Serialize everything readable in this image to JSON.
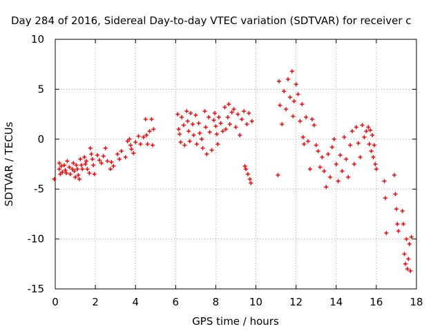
{
  "chart_data": {
    "type": "scatter",
    "title": "Day 284 of 2016, Sidereal Day-to-day VTEC variation (SDTVAR) for receiver c",
    "xlabel": "GPS time / hours",
    "ylabel": "SDTVAR / TECUs",
    "xlim": [
      0,
      18
    ],
    "ylim": [
      -15,
      10
    ],
    "xticks": [
      0,
      2,
      4,
      6,
      8,
      10,
      12,
      14,
      16,
      18
    ],
    "yticks": [
      -15,
      -10,
      -5,
      0,
      5,
      10
    ],
    "xtick_labels": [
      "0",
      "2",
      "4",
      "6",
      "8",
      "10",
      "12",
      "14",
      "16",
      "18"
    ],
    "ytick_labels": [
      "-15",
      "-10",
      "-5",
      "0",
      "5",
      "10"
    ],
    "grid": true,
    "marker": "+",
    "color": "#ff0000",
    "series": [
      {
        "name": "SDTVAR",
        "points": [
          [
            -0.05,
            -4.0
          ],
          [
            0.2,
            -2.4
          ],
          [
            0.2,
            -3.0
          ],
          [
            0.25,
            -3.5
          ],
          [
            0.3,
            -2.7
          ],
          [
            0.35,
            -3.3
          ],
          [
            0.45,
            -2.6
          ],
          [
            0.5,
            -3.1
          ],
          [
            0.55,
            -3.4
          ],
          [
            0.6,
            -2.2
          ],
          [
            0.7,
            -2.8
          ],
          [
            0.75,
            -3.5
          ],
          [
            0.85,
            -3.0
          ],
          [
            0.9,
            -2.4
          ],
          [
            0.95,
            -3.2
          ],
          [
            1.0,
            -3.8
          ],
          [
            1.05,
            -2.6
          ],
          [
            1.1,
            -3.0
          ],
          [
            1.15,
            -3.6
          ],
          [
            1.2,
            -4.0
          ],
          [
            1.25,
            -2.0
          ],
          [
            1.3,
            -2.6
          ],
          [
            1.35,
            -3.0
          ],
          [
            1.45,
            -1.8
          ],
          [
            1.5,
            -2.5
          ],
          [
            1.55,
            -2.2
          ],
          [
            1.6,
            -3.0
          ],
          [
            1.7,
            -3.4
          ],
          [
            1.75,
            -0.9
          ],
          [
            1.8,
            -1.5
          ],
          [
            1.85,
            -2.0
          ],
          [
            1.9,
            -2.6
          ],
          [
            1.95,
            -3.5
          ],
          [
            2.1,
            -1.6
          ],
          [
            2.2,
            -2.1
          ],
          [
            2.3,
            -2.4
          ],
          [
            2.4,
            -1.7
          ],
          [
            2.5,
            -0.9
          ],
          [
            2.6,
            -2.2
          ],
          [
            2.75,
            -3.0
          ],
          [
            2.8,
            -2.3
          ],
          [
            2.9,
            -2.7
          ],
          [
            3.1,
            -1.5
          ],
          [
            3.2,
            -2.0
          ],
          [
            3.3,
            -1.2
          ],
          [
            3.5,
            -1.8
          ],
          [
            3.6,
            -0.2
          ],
          [
            3.7,
            0.0
          ],
          [
            3.75,
            -0.6
          ],
          [
            3.8,
            -1.0
          ],
          [
            3.9,
            -1.4
          ],
          [
            4.0,
            -0.3
          ],
          [
            4.15,
            0.3
          ],
          [
            4.25,
            -0.5
          ],
          [
            4.4,
            0.2
          ],
          [
            4.5,
            2.0
          ],
          [
            4.55,
            0.4
          ],
          [
            4.6,
            -0.5
          ],
          [
            4.7,
            0.8
          ],
          [
            4.8,
            2.0
          ],
          [
            4.85,
            -0.6
          ],
          [
            4.9,
            1.0
          ],
          [
            6.1,
            2.5
          ],
          [
            6.15,
            1.0
          ],
          [
            6.2,
            0.5
          ],
          [
            6.25,
            -0.3
          ],
          [
            6.3,
            2.2
          ],
          [
            6.4,
            1.4
          ],
          [
            6.45,
            -0.6
          ],
          [
            6.55,
            2.8
          ],
          [
            6.6,
            1.8
          ],
          [
            6.65,
            0.8
          ],
          [
            6.7,
            -0.2
          ],
          [
            6.75,
            2.6
          ],
          [
            6.85,
            1.5
          ],
          [
            6.9,
            0.4
          ],
          [
            7.0,
            2.4
          ],
          [
            7.05,
            -0.5
          ],
          [
            7.15,
            1.6
          ],
          [
            7.2,
            0.6
          ],
          [
            7.3,
            0.0
          ],
          [
            7.35,
            -0.9
          ],
          [
            7.45,
            2.8
          ],
          [
            7.5,
            1.2
          ],
          [
            7.55,
            -1.5
          ],
          [
            7.65,
            2.2
          ],
          [
            7.7,
            0.7
          ],
          [
            7.8,
            -1.1
          ],
          [
            7.9,
            1.9
          ],
          [
            7.95,
            2.6
          ],
          [
            8.0,
            1.3
          ],
          [
            8.05,
            0.5
          ],
          [
            8.1,
            -0.5
          ],
          [
            8.15,
            2.2
          ],
          [
            8.25,
            1.6
          ],
          [
            8.35,
            0.8
          ],
          [
            8.45,
            3.2
          ],
          [
            8.5,
            1.0
          ],
          [
            8.6,
            2.2
          ],
          [
            8.65,
            3.5
          ],
          [
            8.7,
            1.5
          ],
          [
            8.8,
            2.7
          ],
          [
            8.9,
            3.0
          ],
          [
            9.0,
            1.2
          ],
          [
            9.1,
            2.5
          ],
          [
            9.2,
            0.4
          ],
          [
            9.3,
            2.0
          ],
          [
            9.4,
            2.8
          ],
          [
            9.45,
            -2.7
          ],
          [
            9.5,
            -3.0
          ],
          [
            9.55,
            1.5
          ],
          [
            9.6,
            -3.5
          ],
          [
            9.65,
            2.6
          ],
          [
            9.7,
            -4.0
          ],
          [
            9.75,
            -4.4
          ],
          [
            9.8,
            1.8
          ],
          [
            11.1,
            -3.6
          ],
          [
            11.15,
            5.8
          ],
          [
            11.2,
            3.4
          ],
          [
            11.3,
            1.5
          ],
          [
            11.4,
            4.8
          ],
          [
            11.5,
            3.0
          ],
          [
            11.6,
            6.0
          ],
          [
            11.7,
            4.2
          ],
          [
            11.8,
            6.8
          ],
          [
            11.85,
            2.3
          ],
          [
            11.9,
            3.8
          ],
          [
            12.0,
            5.5
          ],
          [
            12.1,
            4.5
          ],
          [
            12.2,
            1.8
          ],
          [
            12.3,
            3.5
          ],
          [
            12.35,
            0.2
          ],
          [
            12.4,
            -0.5
          ],
          [
            12.5,
            2.2
          ],
          [
            12.6,
            -0.2
          ],
          [
            12.7,
            -3.0
          ],
          [
            12.8,
            2.0
          ],
          [
            12.9,
            1.4
          ],
          [
            13.0,
            -0.6
          ],
          [
            13.1,
            -1.2
          ],
          [
            13.2,
            -2.8
          ],
          [
            13.3,
            -1.8
          ],
          [
            13.4,
            -3.2
          ],
          [
            13.5,
            -4.8
          ],
          [
            13.6,
            -1.5
          ],
          [
            13.7,
            -3.8
          ],
          [
            13.8,
            -0.8
          ],
          [
            13.9,
            0.0
          ],
          [
            14.0,
            -2.5
          ],
          [
            14.1,
            -4.2
          ],
          [
            14.2,
            -1.6
          ],
          [
            14.3,
            -3.2
          ],
          [
            14.4,
            0.2
          ],
          [
            14.5,
            -2.0
          ],
          [
            14.6,
            -3.8
          ],
          [
            14.7,
            -0.6
          ],
          [
            14.8,
            0.8
          ],
          [
            14.9,
            -2.5
          ],
          [
            15.0,
            1.2
          ],
          [
            15.1,
            -0.4
          ],
          [
            15.2,
            -1.8
          ],
          [
            15.3,
            1.4
          ],
          [
            15.4,
            0.2
          ],
          [
            15.5,
            0.8
          ],
          [
            15.6,
            1.2
          ],
          [
            15.65,
            -0.5
          ],
          [
            15.7,
            0.9
          ],
          [
            15.75,
            -1.2
          ],
          [
            15.8,
            0.4
          ],
          [
            15.85,
            -1.8
          ],
          [
            15.9,
            -0.6
          ],
          [
            15.95,
            -2.5
          ],
          [
            16.0,
            -3.0
          ],
          [
            16.4,
            -4.2
          ],
          [
            16.45,
            -5.9
          ],
          [
            16.5,
            -9.4
          ],
          [
            16.9,
            -3.6
          ],
          [
            16.95,
            -5.5
          ],
          [
            17.0,
            -7.0
          ],
          [
            17.05,
            -8.5
          ],
          [
            17.1,
            -9.2
          ],
          [
            17.3,
            -7.2
          ],
          [
            17.35,
            -8.5
          ],
          [
            17.4,
            -11.5
          ],
          [
            17.45,
            -12.5
          ],
          [
            17.5,
            -10.0
          ],
          [
            17.55,
            -13.0
          ],
          [
            17.6,
            -12.0
          ],
          [
            17.65,
            -10.5
          ],
          [
            17.7,
            -13.2
          ],
          [
            17.75,
            -9.8
          ]
        ]
      }
    ]
  }
}
